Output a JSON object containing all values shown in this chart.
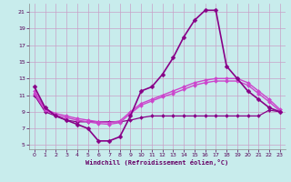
{
  "xlabel": "Windchill (Refroidissement éolien,°C)",
  "xlim": [
    -0.5,
    23.5
  ],
  "ylim": [
    4.5,
    22
  ],
  "yticks": [
    5,
    7,
    9,
    11,
    13,
    15,
    17,
    19,
    21
  ],
  "xticks": [
    0,
    1,
    2,
    3,
    4,
    5,
    6,
    7,
    8,
    9,
    10,
    11,
    12,
    13,
    14,
    15,
    16,
    17,
    18,
    19,
    20,
    21,
    22,
    23
  ],
  "background_color": "#c8ecec",
  "grid_color": "#c8a0c8",
  "series": [
    {
      "x": [
        0,
        1,
        2,
        3,
        4,
        5,
        6,
        7,
        8,
        9,
        10,
        11,
        12,
        13,
        14,
        15,
        16,
        17,
        18,
        19,
        20,
        21,
        22,
        23
      ],
      "y": [
        12.0,
        9.5,
        8.5,
        8.0,
        7.5,
        7.0,
        5.5,
        5.5,
        6.0,
        8.5,
        11.5,
        12.0,
        13.5,
        15.5,
        18.0,
        20.0,
        21.2,
        21.2,
        14.5,
        13.0,
        11.5,
        10.5,
        9.5,
        9.0
      ],
      "color": "#880088",
      "linewidth": 1.2,
      "markersize": 2.5,
      "zorder": 5
    },
    {
      "x": [
        0,
        1,
        2,
        3,
        4,
        5,
        6,
        7,
        8,
        9,
        10,
        11,
        12,
        13,
        14,
        15,
        16,
        17,
        18,
        19,
        20,
        21,
        22,
        23
      ],
      "y": [
        11.5,
        9.3,
        8.8,
        8.5,
        8.2,
        8.0,
        7.8,
        7.7,
        7.9,
        9.0,
        10.0,
        10.5,
        11.0,
        11.5,
        12.0,
        12.5,
        12.8,
        13.0,
        13.0,
        13.0,
        12.5,
        11.5,
        10.5,
        9.3
      ],
      "color": "#cc44cc",
      "linewidth": 1.0,
      "markersize": 2.0,
      "zorder": 4
    },
    {
      "x": [
        0,
        1,
        2,
        3,
        4,
        5,
        6,
        7,
        8,
        9,
        10,
        11,
        12,
        13,
        14,
        15,
        16,
        17,
        18,
        19,
        20,
        21,
        22,
        23
      ],
      "y": [
        11.2,
        9.2,
        8.6,
        8.3,
        8.0,
        7.8,
        7.6,
        7.5,
        7.7,
        8.8,
        9.8,
        10.3,
        10.8,
        11.2,
        11.7,
        12.2,
        12.5,
        12.7,
        12.7,
        12.7,
        12.2,
        11.2,
        10.2,
        9.1
      ],
      "color": "#cc44cc",
      "linewidth": 1.0,
      "markersize": 2.0,
      "zorder": 3
    },
    {
      "x": [
        0,
        1,
        2,
        3,
        4,
        5,
        6,
        7,
        8,
        9,
        10,
        11,
        12,
        13,
        14,
        15,
        16,
        17,
        18,
        19,
        20,
        21,
        22,
        23
      ],
      "y": [
        11.0,
        9.0,
        8.5,
        8.0,
        7.8,
        7.8,
        7.8,
        7.8,
        7.8,
        8.0,
        8.3,
        8.5,
        8.5,
        8.5,
        8.5,
        8.5,
        8.5,
        8.5,
        8.5,
        8.5,
        8.5,
        8.5,
        9.2,
        9.0
      ],
      "color": "#880088",
      "linewidth": 0.9,
      "markersize": 2.0,
      "zorder": 2
    }
  ]
}
